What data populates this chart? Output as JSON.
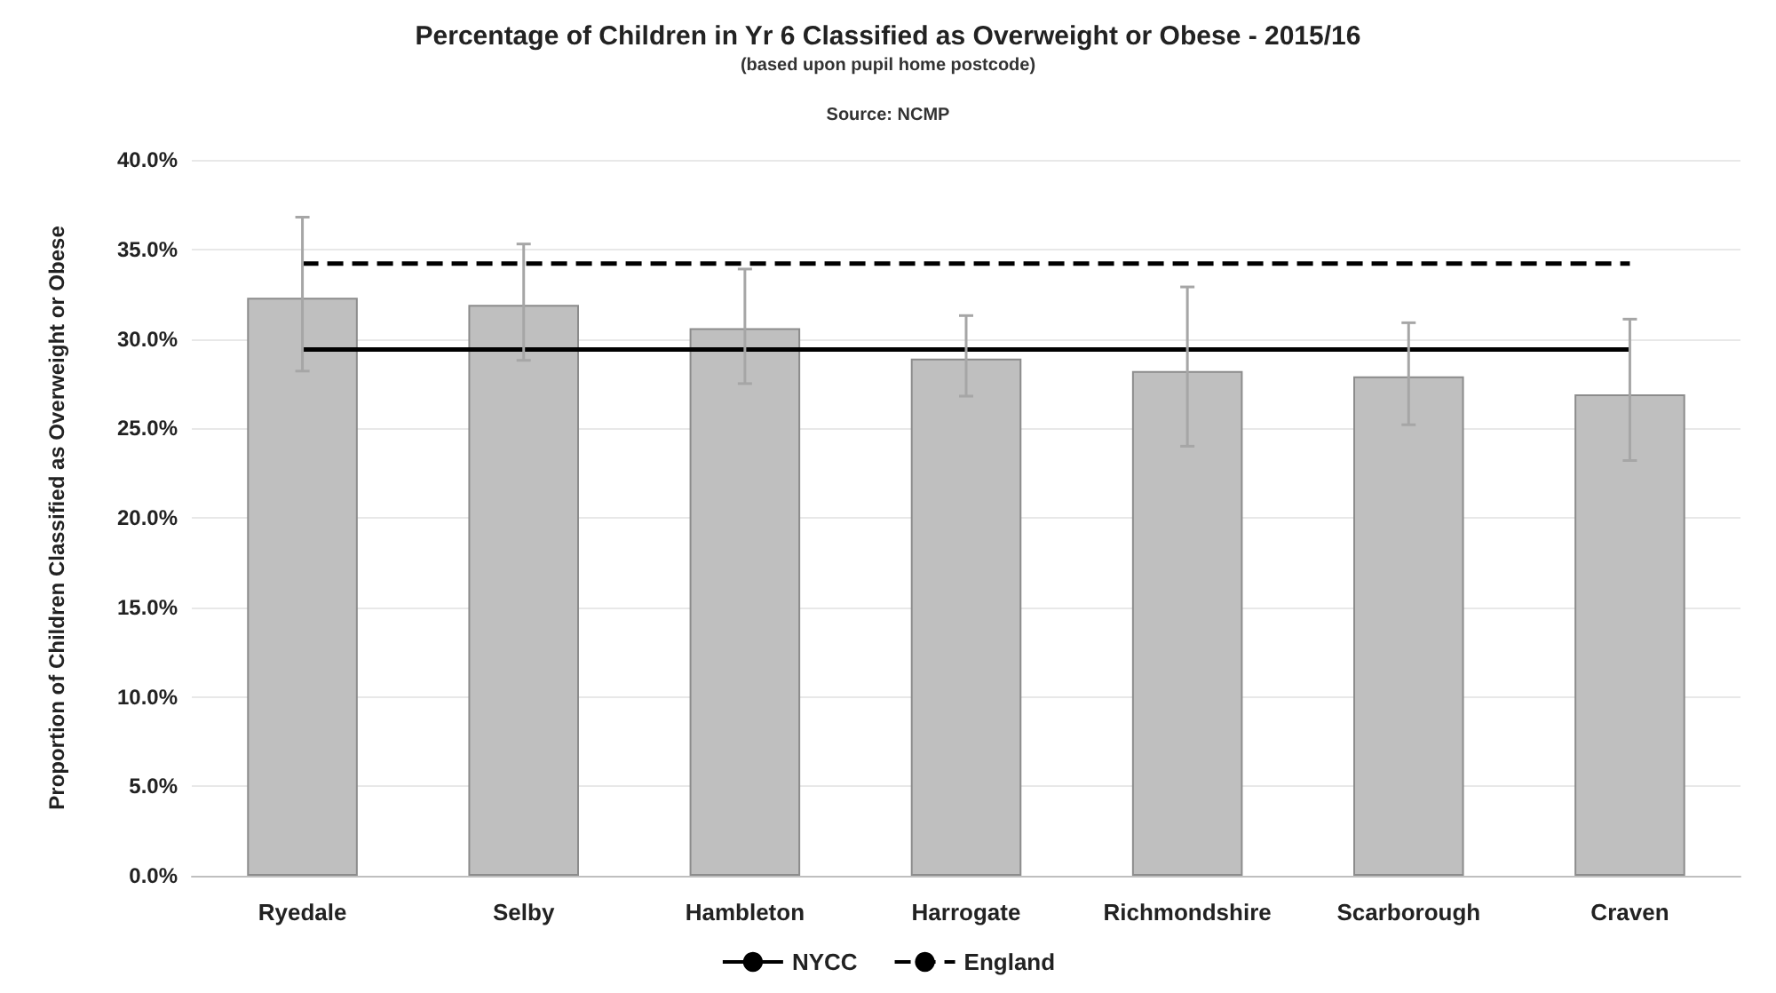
{
  "chart_data": {
    "type": "bar",
    "title": "Percentage of Children in Yr 6 Classified as Overweight or Obese - 2015/16",
    "subtitle": "(based upon pupil home postcode)",
    "annotations": [
      "Source: NCMP"
    ],
    "ylabel": "Proportion of Children Classified as Overweight or Obese",
    "categories": [
      "Ryedale",
      "Selby",
      "Hambleton",
      "Harrogate",
      "Richmondshire",
      "Scarborough",
      "Craven"
    ],
    "series": [
      {
        "color": "#bfbfbf",
        "values": [
          32.3,
          31.9,
          30.6,
          28.9,
          28.2,
          27.9,
          26.9
        ],
        "errors": [
          [
            28.2,
            36.8
          ],
          [
            28.8,
            35.3
          ],
          [
            27.5,
            33.9
          ],
          [
            26.8,
            31.3
          ],
          [
            24.0,
            32.9
          ],
          [
            25.2,
            30.9
          ],
          [
            23.2,
            31.1
          ]
        ]
      },
      {
        "type": "line",
        "name": "NYCC",
        "color": "#000000",
        "line_style": "solid",
        "values": [
          29.4,
          29.4,
          29.4,
          29.4,
          29.4,
          29.4,
          29.4
        ]
      },
      {
        "type": "line",
        "name": "England",
        "color": "#000000",
        "line_style": "dashed",
        "values": [
          34.2,
          34.2,
          34.2,
          34.2,
          34.2,
          34.2,
          34.2
        ]
      }
    ],
    "ylim": [
      0,
      40
    ],
    "yticks": [
      {
        "value": 0,
        "label": "0.0%"
      },
      {
        "value": 5,
        "label": "5.0%"
      },
      {
        "value": 10,
        "label": "10.0%"
      },
      {
        "value": 15,
        "label": "15.0%"
      },
      {
        "value": 20,
        "label": "20.0%"
      },
      {
        "value": 25,
        "label": "25.0%"
      },
      {
        "value": 30,
        "label": "30.0%"
      },
      {
        "value": 35,
        "label": "35.0%"
      },
      {
        "value": 40,
        "label": "40.0%"
      }
    ],
    "grid": "y",
    "legend": "bottom",
    "marker": "none"
  }
}
